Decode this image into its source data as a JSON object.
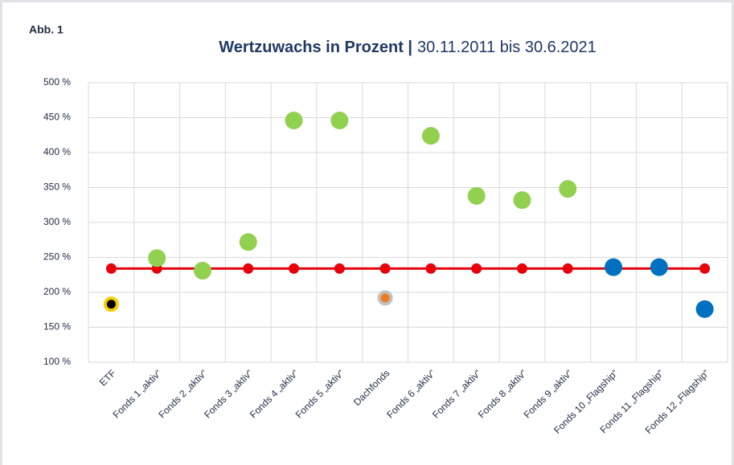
{
  "label": "Abb. 1",
  "chart_data": {
    "type": "scatter",
    "title": "Wertzuwachs in Prozent |",
    "subtitle": "30.11.2011 bis 30.6.2021",
    "categories": [
      "ETF",
      "Fonds 1 „aktiv“",
      "Fonds 2 „aktiv“",
      "Fonds 3 „aktiv“",
      "Fonds 4 „aktiv“",
      "Fonds 5 „aktiv“",
      "Dachfonds",
      "Fonds 6 „aktiv“",
      "Fonds 7 „aktiv“",
      "Fonds 8 „aktiv“",
      "Fonds 9 „aktiv“",
      "Fonds 10 „Flagship“",
      "Fonds 11 „Flagship“",
      "Fonds 12 „Flagship“"
    ],
    "series": [
      {
        "kind": "line",
        "color": "#e8000b",
        "values": [
          234,
          234,
          234,
          234,
          234,
          234,
          234,
          234,
          234,
          234,
          234,
          234,
          234,
          234
        ]
      },
      {
        "kind": "points",
        "colors": [
          "#000000",
          "#92d050",
          "#92d050",
          "#92d050",
          "#92d050",
          "#92d050",
          "#f07c22",
          "#92d050",
          "#92d050",
          "#92d050",
          "#92d050",
          "#0070c0",
          "#0070c0",
          "#0070c0"
        ],
        "edge_colors": [
          "#f5d000",
          null,
          null,
          null,
          null,
          null,
          "#c0c0c0",
          null,
          null,
          null,
          null,
          null,
          null,
          null
        ],
        "values": [
          183,
          249,
          231,
          272,
          446,
          446,
          192,
          424,
          338,
          332,
          348,
          236,
          236,
          176
        ]
      }
    ],
    "ylim": [
      100,
      500
    ],
    "yticks": [
      {
        "value": 100,
        "label": "100 %"
      },
      {
        "value": 150,
        "label": "150 %"
      },
      {
        "value": 200,
        "label": "200 %"
      },
      {
        "value": 250,
        "label": "250 %"
      },
      {
        "value": 300,
        "label": "300 %"
      },
      {
        "value": 350,
        "label": "350 %"
      },
      {
        "value": 400,
        "label": "400 %"
      },
      {
        "value": 450,
        "label": "450 %"
      },
      {
        "value": 500,
        "label": "500 %"
      }
    ],
    "grid": true
  }
}
